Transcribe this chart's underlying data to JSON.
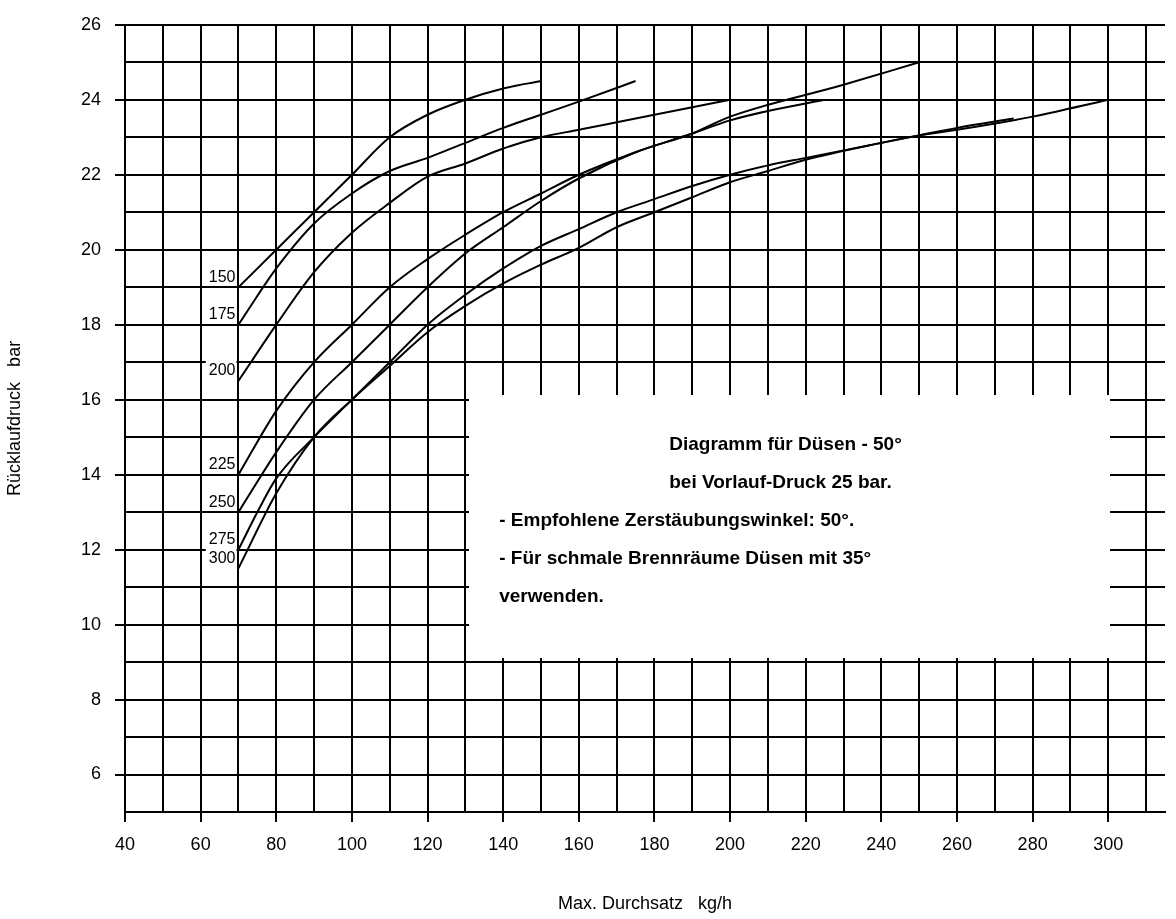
{
  "chart_data": {
    "type": "line",
    "xlabel": "Max. Durchsatz   kg/h",
    "ylabel": "Rücklaufdruck   bar",
    "xlim": [
      40,
      315
    ],
    "ylim": [
      5,
      26
    ],
    "xticks": [
      40,
      {
        "value": 50,
        "label": null
      },
      60,
      {
        "value": 70,
        "label": null
      },
      80,
      {
        "value": 90,
        "label": null
      },
      100,
      {
        "value": 110,
        "label": null
      },
      120,
      {
        "value": 130,
        "label": null
      },
      140,
      {
        "value": 150,
        "label": null
      },
      160,
      {
        "value": 170,
        "label": null
      },
      180,
      {
        "value": 190,
        "label": null
      },
      200,
      {
        "value": 210,
        "label": null
      },
      220,
      {
        "value": 230,
        "label": null
      },
      240,
      {
        "value": 250,
        "label": null
      },
      260,
      {
        "value": 270,
        "label": null
      },
      280,
      {
        "value": 290,
        "label": null
      },
      300,
      {
        "value": 310,
        "label": null
      }
    ],
    "yticks": [
      {
        "value": 5,
        "label": null
      },
      6,
      {
        "value": 7,
        "label": null
      },
      8,
      {
        "value": 9,
        "label": null
      },
      10,
      {
        "value": 11,
        "label": null
      },
      12,
      {
        "value": 13,
        "label": null
      },
      14,
      {
        "value": 15,
        "label": null
      },
      16,
      {
        "value": 17,
        "label": null
      },
      18,
      {
        "value": 19,
        "label": null
      },
      20,
      {
        "value": 21,
        "label": null
      },
      22,
      {
        "value": 23,
        "label": null
      },
      24,
      {
        "value": 25,
        "label": null
      },
      26
    ],
    "grid": true,
    "marker": "none",
    "line_style": "solid",
    "series": [
      {
        "name": "150",
        "color": "#000000",
        "x": [
          70,
          80,
          90,
          100,
          110,
          120,
          130,
          140,
          150
        ],
        "values": [
          19,
          20,
          21,
          22,
          23,
          23.6,
          24,
          24.3,
          24.5
        ]
      },
      {
        "name": "175",
        "color": "#000000",
        "x": [
          70,
          80,
          90,
          100,
          110,
          120,
          130,
          140,
          150,
          160,
          175
        ],
        "values": [
          18,
          19.5,
          20.7,
          21.5,
          22.1,
          22.45,
          22.85,
          23.25,
          23.6,
          23.95,
          24.5
        ]
      },
      {
        "name": "200",
        "color": "#000000",
        "x": [
          70,
          80,
          90,
          100,
          110,
          120,
          130,
          140,
          150,
          160,
          175,
          190,
          200
        ],
        "values": [
          16.5,
          18,
          19.4,
          20.45,
          21.25,
          21.95,
          22.3,
          22.7,
          23,
          23.2,
          23.5,
          23.8,
          24
        ]
      },
      {
        "name": "225",
        "color": "#000000",
        "x": [
          70,
          80,
          90,
          100,
          110,
          120,
          130,
          140,
          150,
          160,
          175,
          190,
          200,
          210,
          225
        ],
        "values": [
          14,
          15.7,
          17,
          18,
          19,
          19.75,
          20.4,
          21,
          21.5,
          22,
          22.6,
          23.1,
          23.45,
          23.7,
          24
        ]
      },
      {
        "name": "250",
        "color": "#000000",
        "x": [
          70,
          80,
          90,
          100,
          110,
          120,
          130,
          140,
          150,
          160,
          175,
          190,
          200,
          230,
          250
        ],
        "values": [
          13,
          14.6,
          16,
          17,
          18,
          19,
          19.9,
          20.6,
          21.3,
          21.9,
          22.6,
          23.1,
          23.55,
          24.4,
          25
        ]
      },
      {
        "name": "275",
        "color": "#000000",
        "x": [
          70,
          75,
          80,
          90,
          100,
          110,
          120,
          130,
          140,
          150,
          160,
          170,
          180,
          190,
          200,
          210,
          220,
          240,
          250,
          260,
          275
        ],
        "values": [
          12,
          13,
          13.9,
          15,
          16,
          17,
          18,
          18.8,
          19.5,
          20.1,
          20.55,
          21,
          21.35,
          21.7,
          22,
          22.25,
          22.45,
          22.85,
          23.05,
          23.25,
          23.5
        ]
      },
      {
        "name": "300",
        "color": "#000000",
        "x": [
          70,
          80,
          90,
          100,
          110,
          120,
          130,
          140,
          150,
          160,
          170,
          180,
          190,
          200,
          210,
          220,
          240,
          250,
          260,
          280,
          300
        ],
        "values": [
          11.5,
          13.5,
          15,
          16,
          16.9,
          17.8,
          18.5,
          19.1,
          19.6,
          20.05,
          20.6,
          21,
          21.4,
          21.8,
          22.1,
          22.4,
          22.85,
          23.05,
          23.2,
          23.55,
          24
        ]
      }
    ],
    "annotations": [
      "Diagramm für Düsen - 50° bei Vorlauf-Druck 25 bar.",
      "- Empfohlene Zerstäubungswinkel: 50°.",
      "- Für schmale Brennräume Düsen mit 35° verwenden."
    ]
  }
}
